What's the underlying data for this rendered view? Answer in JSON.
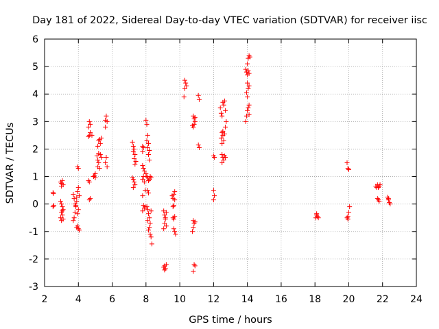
{
  "chart_data": {
    "type": "scatter",
    "title": "Day 181 of 2022, Sidereal Day-to-day VTEC variation (SDTVAR) for receiver iisc",
    "xlabel": "GPS time / hours",
    "ylabel": "SDTVAR / TECUs",
    "xlim": [
      2,
      24
    ],
    "ylim": [
      -3,
      6
    ],
    "x_ticks": [
      2,
      4,
      6,
      8,
      10,
      12,
      14,
      16,
      18,
      20,
      22,
      24
    ],
    "y_ticks": [
      -3,
      -2,
      -1,
      0,
      1,
      2,
      3,
      4,
      5,
      6
    ],
    "grid": true,
    "marker": "+",
    "color": "#ff0000",
    "series": [
      {
        "name": "SDTVAR",
        "points": [
          [
            2.5,
            0.42
          ],
          [
            2.52,
            0.38
          ],
          [
            2.55,
            -0.05
          ],
          [
            2.5,
            -0.1
          ],
          [
            2.95,
            0.8
          ],
          [
            3.0,
            0.75
          ],
          [
            3.05,
            0.85
          ],
          [
            3.1,
            0.7
          ],
          [
            3.0,
            0.65
          ],
          [
            2.95,
            0.1
          ],
          [
            3.0,
            0.0
          ],
          [
            3.05,
            -0.1
          ],
          [
            3.1,
            -0.2
          ],
          [
            3.0,
            -0.3
          ],
          [
            3.05,
            -0.4
          ],
          [
            2.95,
            -0.5
          ],
          [
            3.1,
            -0.55
          ],
          [
            3.0,
            -0.6
          ],
          [
            3.05,
            -0.25
          ],
          [
            3.7,
            0.35
          ],
          [
            3.75,
            0.2
          ],
          [
            3.8,
            0.0
          ],
          [
            3.85,
            -0.1
          ],
          [
            3.8,
            -0.3
          ],
          [
            3.9,
            0.1
          ],
          [
            3.75,
            -0.5
          ],
          [
            3.7,
            -0.6
          ],
          [
            3.95,
            0.45
          ],
          [
            4.0,
            0.6
          ],
          [
            4.05,
            0.3
          ],
          [
            3.9,
            0.25
          ],
          [
            3.85,
            -0.05
          ],
          [
            4.0,
            -0.2
          ],
          [
            3.95,
            -0.35
          ],
          [
            3.95,
            -0.8
          ],
          [
            4.0,
            -0.9
          ],
          [
            4.05,
            -0.95
          ],
          [
            3.9,
            -0.85
          ],
          [
            3.95,
            1.35
          ],
          [
            4.0,
            1.3
          ],
          [
            4.6,
            0.85
          ],
          [
            4.65,
            0.8
          ],
          [
            4.7,
            0.2
          ],
          [
            4.65,
            0.15
          ],
          [
            4.65,
            3.0
          ],
          [
            4.7,
            2.9
          ],
          [
            4.6,
            2.8
          ],
          [
            4.7,
            2.6
          ],
          [
            4.65,
            2.5
          ],
          [
            4.6,
            2.45
          ],
          [
            4.8,
            2.5
          ],
          [
            4.9,
            1.0
          ],
          [
            4.95,
            1.05
          ],
          [
            5.0,
            1.1
          ],
          [
            5.0,
            0.95
          ],
          [
            5.1,
            1.75
          ],
          [
            5.15,
            1.6
          ],
          [
            5.2,
            1.5
          ],
          [
            5.15,
            1.35
          ],
          [
            5.25,
            1.3
          ],
          [
            5.3,
            1.8
          ],
          [
            5.35,
            1.7
          ],
          [
            5.2,
            1.85
          ],
          [
            5.2,
            2.3
          ],
          [
            5.25,
            2.35
          ],
          [
            5.3,
            2.2
          ],
          [
            5.35,
            2.4
          ],
          [
            5.15,
            2.1
          ],
          [
            5.65,
            3.2
          ],
          [
            5.6,
            3.05
          ],
          [
            5.7,
            3.0
          ],
          [
            5.6,
            2.8
          ],
          [
            5.65,
            1.7
          ],
          [
            5.6,
            1.5
          ],
          [
            5.7,
            1.35
          ],
          [
            7.2,
            2.25
          ],
          [
            7.25,
            2.1
          ],
          [
            7.3,
            2.0
          ],
          [
            7.25,
            1.9
          ],
          [
            7.35,
            1.8
          ],
          [
            7.3,
            1.65
          ],
          [
            7.4,
            1.55
          ],
          [
            7.35,
            1.45
          ],
          [
            7.2,
            0.95
          ],
          [
            7.25,
            0.9
          ],
          [
            7.3,
            0.8
          ],
          [
            7.35,
            0.7
          ],
          [
            7.25,
            0.6
          ],
          [
            7.8,
            2.1
          ],
          [
            7.85,
            2.05
          ],
          [
            7.8,
            1.9
          ],
          [
            7.8,
            1.4
          ],
          [
            7.85,
            1.3
          ],
          [
            7.9,
            1.2
          ],
          [
            7.8,
            0.9
          ],
          [
            7.85,
            1.0
          ],
          [
            7.9,
            0.8
          ],
          [
            7.95,
            0.5
          ],
          [
            7.8,
            0.3
          ],
          [
            7.85,
            -0.05
          ],
          [
            7.9,
            -0.15
          ],
          [
            7.8,
            -0.25
          ],
          [
            7.95,
            -0.1
          ],
          [
            8.0,
            3.05
          ],
          [
            8.05,
            2.9
          ],
          [
            8.1,
            2.5
          ],
          [
            8.05,
            2.3
          ],
          [
            8.15,
            2.2
          ],
          [
            8.1,
            2.05
          ],
          [
            8.2,
            1.95
          ],
          [
            8.15,
            1.8
          ],
          [
            8.2,
            1.6
          ],
          [
            8.0,
            1.1
          ],
          [
            8.05,
            1.0
          ],
          [
            8.1,
            0.95
          ],
          [
            8.15,
            0.85
          ],
          [
            8.2,
            0.9
          ],
          [
            8.25,
            1.0
          ],
          [
            8.3,
            0.95
          ],
          [
            8.1,
            0.5
          ],
          [
            8.15,
            0.4
          ],
          [
            8.05,
            -0.1
          ],
          [
            8.1,
            -0.2
          ],
          [
            8.15,
            -0.35
          ],
          [
            8.2,
            -0.5
          ],
          [
            8.25,
            -0.7
          ],
          [
            8.2,
            -0.85
          ],
          [
            8.25,
            -1.1
          ],
          [
            8.3,
            -1.2
          ],
          [
            8.35,
            -1.45
          ],
          [
            8.15,
            -0.95
          ],
          [
            8.3,
            -0.25
          ],
          [
            8.1,
            -0.6
          ],
          [
            9.05,
            -0.25
          ],
          [
            9.1,
            -0.4
          ],
          [
            9.15,
            -0.55
          ],
          [
            9.1,
            -0.7
          ],
          [
            9.2,
            -0.8
          ],
          [
            9.05,
            -0.9
          ],
          [
            9.15,
            -0.5
          ],
          [
            9.2,
            -0.3
          ],
          [
            9.05,
            -2.3
          ],
          [
            9.1,
            -2.25
          ],
          [
            9.15,
            -2.35
          ],
          [
            9.2,
            -2.2
          ],
          [
            9.1,
            -2.4
          ],
          [
            9.55,
            0.3
          ],
          [
            9.6,
            0.2
          ],
          [
            9.65,
            0.35
          ],
          [
            9.7,
            0.15
          ],
          [
            9.65,
            -0.05
          ],
          [
            9.7,
            0.45
          ],
          [
            9.6,
            -0.1
          ],
          [
            9.6,
            -0.5
          ],
          [
            9.65,
            -0.55
          ],
          [
            9.7,
            -0.45
          ],
          [
            9.65,
            -0.9
          ],
          [
            9.7,
            -1.0
          ],
          [
            9.75,
            -1.1
          ],
          [
            10.3,
            4.5
          ],
          [
            10.35,
            4.4
          ],
          [
            10.4,
            4.3
          ],
          [
            10.3,
            4.2
          ],
          [
            10.25,
            3.9
          ],
          [
            10.8,
            3.2
          ],
          [
            10.85,
            3.1
          ],
          [
            10.9,
            3.0
          ],
          [
            10.85,
            2.9
          ],
          [
            10.8,
            2.8
          ],
          [
            10.9,
            3.15
          ],
          [
            10.75,
            2.85
          ],
          [
            10.8,
            -0.6
          ],
          [
            10.85,
            -0.7
          ],
          [
            10.8,
            -0.85
          ],
          [
            10.75,
            -1.0
          ],
          [
            10.9,
            -0.65
          ],
          [
            10.85,
            -2.2
          ],
          [
            10.9,
            -2.25
          ],
          [
            10.8,
            -2.45
          ],
          [
            11.1,
            3.95
          ],
          [
            11.15,
            3.8
          ],
          [
            11.1,
            2.15
          ],
          [
            11.15,
            2.05
          ],
          [
            12.0,
            1.75
          ],
          [
            12.05,
            1.7
          ],
          [
            12.0,
            0.5
          ],
          [
            12.05,
            0.3
          ],
          [
            12.0,
            0.15
          ],
          [
            12.4,
            3.5
          ],
          [
            12.45,
            3.3
          ],
          [
            12.5,
            3.2
          ],
          [
            12.55,
            3.7
          ],
          [
            12.6,
            3.6
          ],
          [
            12.65,
            3.75
          ],
          [
            12.7,
            3.4
          ],
          [
            12.5,
            2.6
          ],
          [
            12.55,
            2.5
          ],
          [
            12.45,
            2.4
          ],
          [
            12.6,
            2.3
          ],
          [
            12.5,
            2.2
          ],
          [
            12.55,
            2.65
          ],
          [
            12.65,
            2.55
          ],
          [
            12.7,
            2.8
          ],
          [
            12.75,
            3.0
          ],
          [
            12.5,
            1.8
          ],
          [
            12.55,
            1.7
          ],
          [
            12.6,
            1.6
          ],
          [
            12.5,
            1.5
          ],
          [
            12.65,
            1.75
          ],
          [
            12.7,
            1.7
          ],
          [
            13.9,
            4.9
          ],
          [
            13.95,
            4.8
          ],
          [
            14.0,
            4.7
          ],
          [
            14.05,
            4.85
          ],
          [
            14.1,
            4.75
          ],
          [
            14.15,
            5.35
          ],
          [
            14.1,
            5.4
          ],
          [
            14.05,
            5.3
          ],
          [
            14.0,
            5.1
          ],
          [
            14.0,
            4.4
          ],
          [
            14.05,
            4.2
          ],
          [
            14.1,
            4.3
          ],
          [
            13.95,
            4.05
          ],
          [
            14.0,
            3.9
          ],
          [
            14.1,
            3.6
          ],
          [
            14.05,
            3.5
          ],
          [
            14.0,
            3.4
          ],
          [
            13.95,
            3.2
          ],
          [
            13.9,
            3.0
          ],
          [
            14.1,
            3.25
          ],
          [
            18.1,
            -0.4
          ],
          [
            18.15,
            -0.45
          ],
          [
            18.2,
            -0.5
          ],
          [
            18.1,
            -0.35
          ],
          [
            18.05,
            -0.5
          ],
          [
            19.9,
            1.5
          ],
          [
            19.95,
            1.3
          ],
          [
            20.0,
            1.25
          ],
          [
            19.9,
            -0.5
          ],
          [
            19.95,
            -0.45
          ],
          [
            20.0,
            -0.3
          ],
          [
            20.05,
            -0.1
          ],
          [
            19.95,
            -0.55
          ],
          [
            21.6,
            0.65
          ],
          [
            21.65,
            0.6
          ],
          [
            21.7,
            0.7
          ],
          [
            21.75,
            0.6
          ],
          [
            21.8,
            0.65
          ],
          [
            21.85,
            0.7
          ],
          [
            21.7,
            0.2
          ],
          [
            21.75,
            0.15
          ],
          [
            21.8,
            0.1
          ],
          [
            22.3,
            0.25
          ],
          [
            22.35,
            0.15
          ],
          [
            22.4,
            0.05
          ],
          [
            22.45,
            0.0
          ],
          [
            22.35,
            0.2
          ]
        ]
      }
    ]
  }
}
